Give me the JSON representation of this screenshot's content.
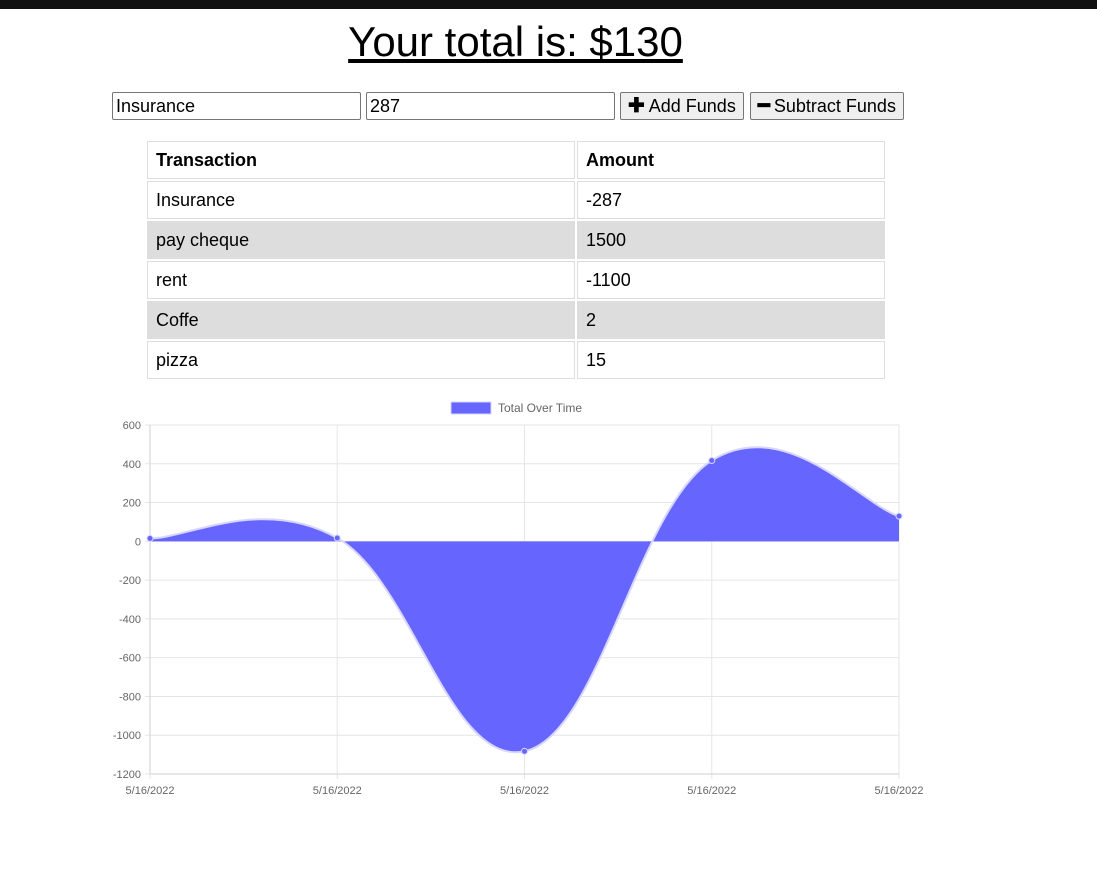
{
  "header": {
    "total_text": "Your total is: $130"
  },
  "form": {
    "name_value": "Insurance",
    "amount_value": "287",
    "add_label": "Add Funds",
    "subtract_label": "Subtract Funds",
    "add_icon": "plus-icon",
    "subtract_icon": "minus-icon"
  },
  "table": {
    "headers": [
      "Transaction",
      "Amount"
    ],
    "rows": [
      {
        "name": "Insurance",
        "amount": "-287"
      },
      {
        "name": "pay cheque",
        "amount": "1500"
      },
      {
        "name": "rent",
        "amount": "-1100"
      },
      {
        "name": "Coffe",
        "amount": "2"
      },
      {
        "name": "pizza",
        "amount": "15"
      }
    ],
    "stripe_color": "#dddddd"
  },
  "chart_data": {
    "type": "area",
    "legend": "Total Over Time",
    "legend_position": "top",
    "categories": [
      "5/16/2022",
      "5/16/2022",
      "5/16/2022",
      "5/16/2022",
      "5/16/2022"
    ],
    "values": [
      15,
      17,
      -1083,
      417,
      130
    ],
    "ylim": [
      -1200,
      600
    ],
    "yticks": [
      600,
      400,
      200,
      0,
      -200,
      -400,
      -600,
      -800,
      -1000,
      -1200
    ],
    "grid": true,
    "fill_color": "#6666ff",
    "line_color": "#d6d6ff"
  }
}
